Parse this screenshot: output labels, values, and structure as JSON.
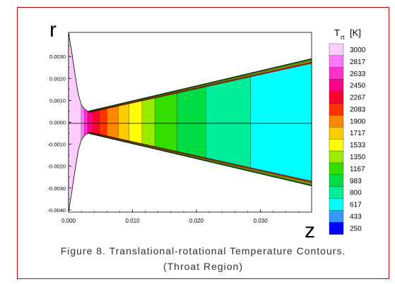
{
  "chart_data": {
    "type": "heatmap",
    "title": "",
    "xlabel": "z",
    "ylabel": "r",
    "xlim": [
      0.0,
      0.038
    ],
    "ylim": [
      -0.0041,
      0.0041
    ],
    "x_ticks": [
      0.0,
      0.01,
      0.02,
      0.03
    ],
    "x_tick_labels": [
      "0.000",
      "0.010",
      "0.020",
      "0.030"
    ],
    "y_ticks": [
      0.003,
      0.002,
      0.001,
      0.0,
      -0.001,
      -0.002,
      -0.003,
      -0.004
    ],
    "y_tick_labels": [
      "0.0030",
      "0.0020",
      "0.0010",
      "0.0000",
      "-0.0010",
      "-0.0020",
      "-0.0030",
      "-0.0040"
    ],
    "colorbar": {
      "title_main": "T",
      "title_sub": "rt",
      "title_unit": "[K]",
      "levels": [
        3000,
        2817,
        2633,
        2450,
        2267,
        2083,
        1900,
        1717,
        1533,
        1350,
        1167,
        983,
        800,
        617,
        433,
        250
      ],
      "colors": [
        "#ffccff",
        "#ff77ff",
        "#ff33cc",
        "#ff0088",
        "#ff0033",
        "#ff3300",
        "#ff8800",
        "#ffcc00",
        "#ffff00",
        "#99ee00",
        "#33dd00",
        "#00dd44",
        "#00ee99",
        "#00ffff",
        "#3399ff",
        "#0000ff"
      ]
    },
    "nozzle_profile": [
      {
        "z": 0.0,
        "r": 0.0041
      },
      {
        "z": 0.0005,
        "r": 0.0032
      },
      {
        "z": 0.001,
        "r": 0.0022
      },
      {
        "z": 0.0015,
        "r": 0.0013
      },
      {
        "z": 0.002,
        "r": 0.0008
      },
      {
        "z": 0.0025,
        "r": 0.0006
      },
      {
        "z": 0.003,
        "r": 0.0005
      },
      {
        "z": 0.038,
        "r": 0.0029
      }
    ],
    "bands": [
      {
        "z_start": 0.0,
        "z_end": 0.002,
        "level": 3000
      },
      {
        "z_start": 0.002,
        "z_end": 0.0025,
        "level": 2817
      },
      {
        "z_start": 0.0025,
        "z_end": 0.003,
        "level": 2633
      },
      {
        "z_start": 0.003,
        "z_end": 0.0038,
        "level": 2450
      },
      {
        "z_start": 0.0038,
        "z_end": 0.0048,
        "level": 2267
      },
      {
        "z_start": 0.0048,
        "z_end": 0.006,
        "level": 2083
      },
      {
        "z_start": 0.006,
        "z_end": 0.0078,
        "level": 1900
      },
      {
        "z_start": 0.0078,
        "z_end": 0.0095,
        "level": 1717
      },
      {
        "z_start": 0.0095,
        "z_end": 0.0115,
        "level": 1533
      },
      {
        "z_start": 0.0115,
        "z_end": 0.0135,
        "level": 1350
      },
      {
        "z_start": 0.0135,
        "z_end": 0.017,
        "level": 1167
      },
      {
        "z_start": 0.017,
        "z_end": 0.0215,
        "level": 983
      },
      {
        "z_start": 0.0215,
        "z_end": 0.0285,
        "level": 800
      },
      {
        "z_start": 0.0285,
        "z_end": 0.038,
        "level": 617
      }
    ],
    "wall_layer": [
      {
        "level": 983
      },
      {
        "level": 1167
      },
      {
        "level": 1350
      },
      {
        "level": 1533
      },
      {
        "level": 1717
      },
      {
        "level": 1900
      },
      {
        "level": 2083
      },
      {
        "level": 2267
      }
    ]
  },
  "caption": {
    "line1": "Figure 8. Translational-rotational Temperature Contours.",
    "line2": "(Throat Region)"
  }
}
